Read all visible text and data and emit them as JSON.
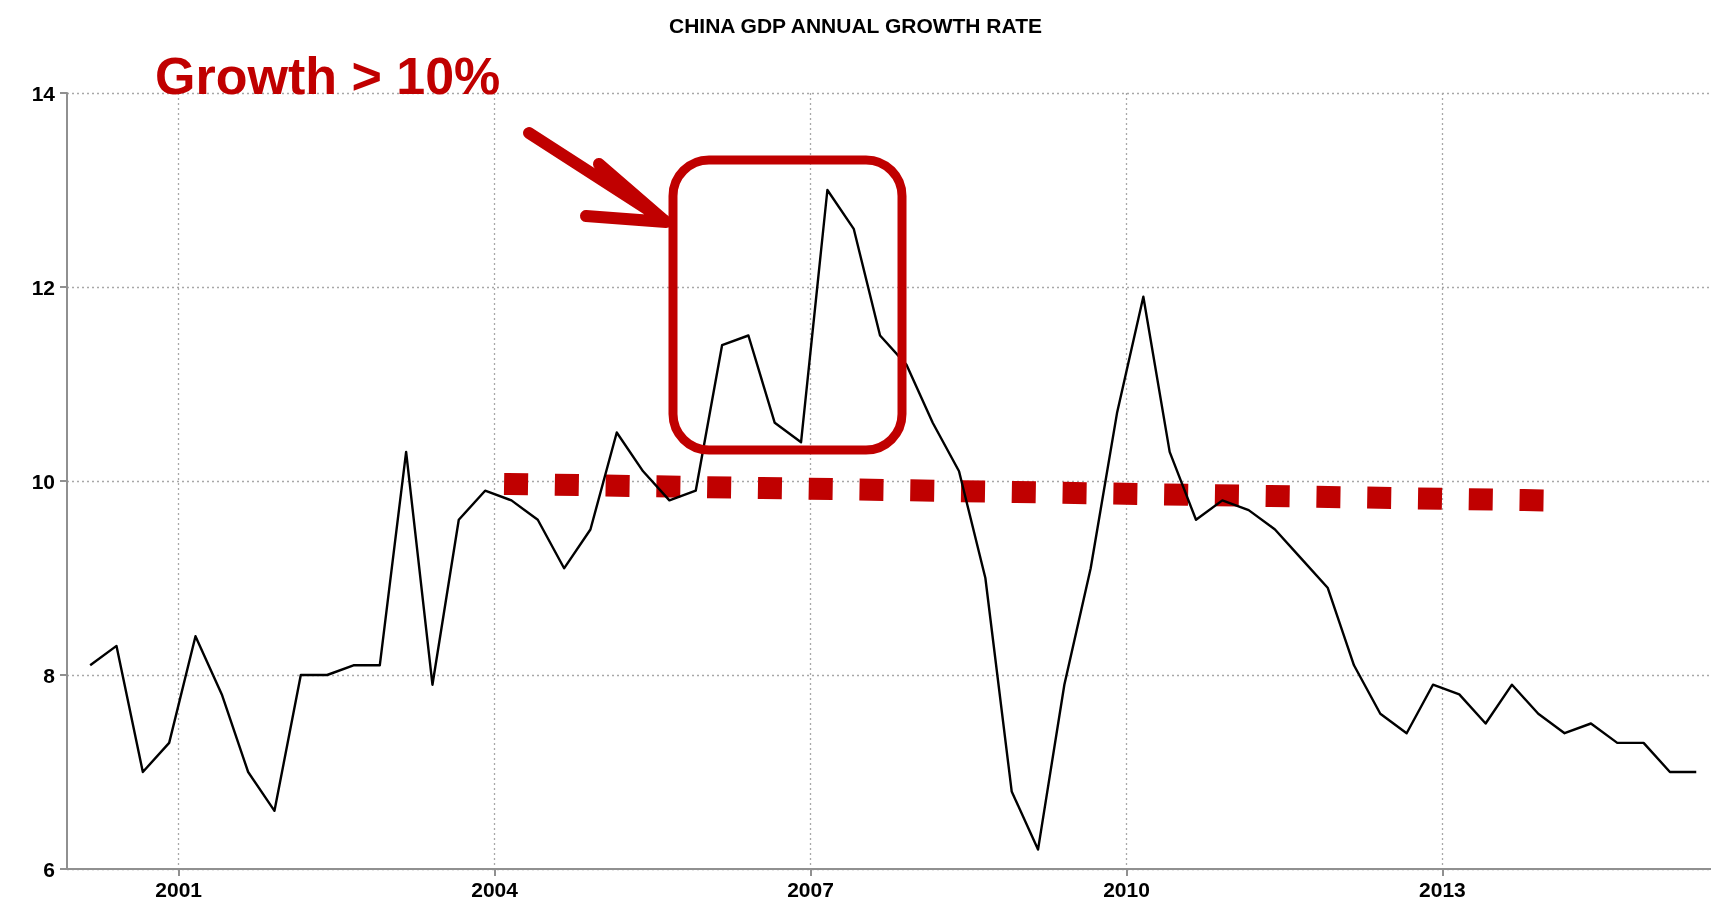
{
  "chart_data": {
    "type": "line",
    "title": "CHINA GDP ANNUAL GROWTH RATE",
    "x": [
      2000.16,
      2000.41,
      2000.66,
      2000.91,
      2001.16,
      2001.41,
      2001.66,
      2001.91,
      2002.16,
      2002.41,
      2002.66,
      2002.91,
      2003.16,
      2003.41,
      2003.66,
      2003.91,
      2004.16,
      2004.41,
      2004.66,
      2004.91,
      2005.16,
      2005.41,
      2005.66,
      2005.91,
      2006.16,
      2006.41,
      2006.66,
      2006.91,
      2007.16,
      2007.41,
      2007.66,
      2007.91,
      2008.16,
      2008.41,
      2008.66,
      2008.91,
      2009.16,
      2009.41,
      2009.66,
      2009.91,
      2010.16,
      2010.41,
      2010.66,
      2010.91,
      2011.16,
      2011.41,
      2011.66,
      2011.91,
      2012.16,
      2012.41,
      2012.66,
      2012.91,
      2013.16,
      2013.41,
      2013.66,
      2013.91,
      2014.16,
      2014.41,
      2014.66,
      2014.91,
      2015.16,
      2015.41
    ],
    "series": [
      {
        "color": "#000000",
        "values": [
          8.1,
          8.3,
          7.0,
          7.3,
          8.4,
          7.8,
          7.0,
          6.6,
          8.0,
          8.0,
          8.1,
          8.1,
          10.3,
          7.9,
          9.6,
          9.9,
          9.8,
          9.6,
          9.1,
          9.5,
          10.5,
          10.1,
          9.8,
          9.9,
          11.4,
          11.5,
          10.6,
          10.4,
          13.0,
          12.6,
          11.5,
          11.2,
          10.6,
          10.1,
          9.0,
          6.8,
          6.2,
          7.9,
          9.1,
          10.7,
          11.9,
          10.3,
          9.6,
          9.8,
          9.7,
          9.5,
          9.2,
          8.9,
          8.1,
          7.6,
          7.4,
          7.9,
          7.8,
          7.5,
          7.9,
          7.6,
          7.4,
          7.5,
          7.3,
          7.3,
          7.0,
          7.0
        ]
      },
      {
        "type": "line",
        "color": "#c00000",
        "line_style": "dotted",
        "x": [
          2004.09,
          2013.96
        ],
        "values": [
          9.97,
          9.8
        ]
      }
    ],
    "xlim": [
      1999.94,
      2015.55
    ],
    "xticks": [
      2001,
      2004,
      2007,
      2010,
      2013
    ],
    "ylim": [
      6,
      14
    ],
    "yticks": [
      6,
      8,
      10,
      12,
      14
    ],
    "grid": true,
    "annotations": [
      "Growth > 10%"
    ]
  }
}
